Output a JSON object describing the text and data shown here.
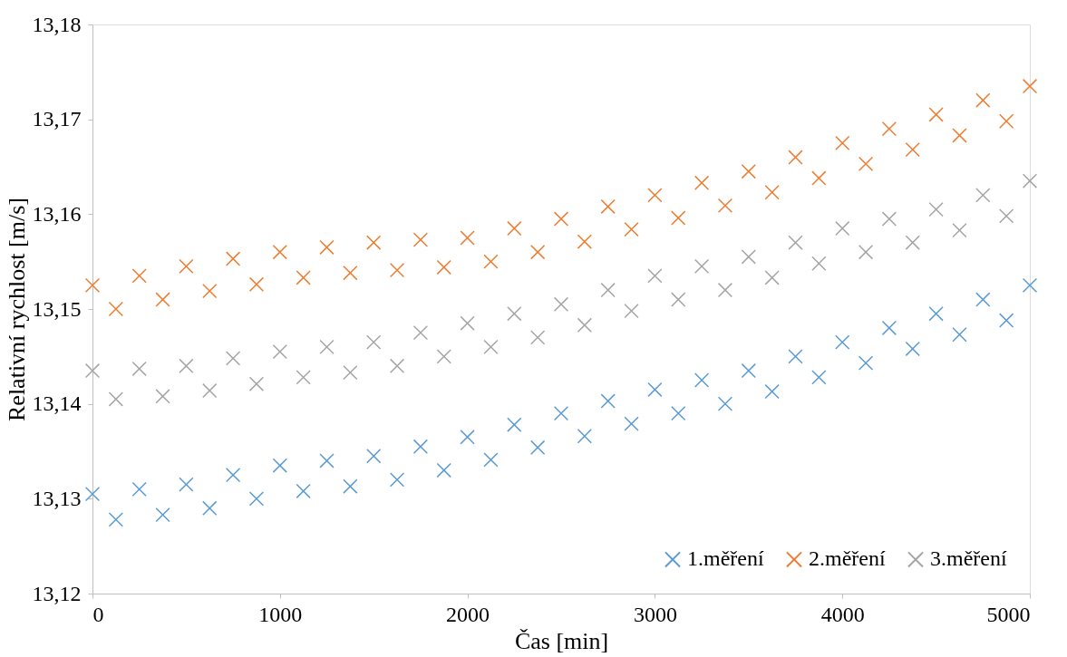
{
  "chart_data": {
    "type": "scatter",
    "xlabel": "Čas [min]",
    "ylabel": "Relativní rychlost [m/s]",
    "x": [
      0,
      125,
      250,
      375,
      500,
      625,
      750,
      875,
      1000,
      1125,
      1250,
      1375,
      1500,
      1625,
      1750,
      1875,
      2000,
      2125,
      2250,
      2375,
      2500,
      2625,
      2750,
      2875,
      3000,
      3125,
      3250,
      3375,
      3500,
      3625,
      3750,
      3875,
      4000,
      4125,
      4250,
      4375,
      4500,
      4625,
      4750,
      4875,
      5000
    ],
    "series": [
      {
        "name": "1.měření",
        "color": "#5b9bd5",
        "values": [
          13.1305,
          13.1278,
          13.131,
          13.1283,
          13.1315,
          13.129,
          13.1325,
          13.13,
          13.1335,
          13.1308,
          13.134,
          13.1313,
          13.1345,
          13.132,
          13.1355,
          13.133,
          13.1365,
          13.1341,
          13.1378,
          13.1354,
          13.139,
          13.1366,
          13.1403,
          13.1379,
          13.1415,
          13.139,
          13.1425,
          13.14,
          13.1435,
          13.1413,
          13.145,
          13.1428,
          13.1465,
          13.1443,
          13.148,
          13.1458,
          13.1495,
          13.1473,
          13.151,
          13.1488,
          13.1525
        ]
      },
      {
        "name": "2.měření",
        "color": "#ed7d31",
        "values": [
          13.1525,
          13.15,
          13.1535,
          13.151,
          13.1545,
          13.1519,
          13.1553,
          13.1526,
          13.156,
          13.1533,
          13.1565,
          13.1538,
          13.157,
          13.1541,
          13.1573,
          13.1544,
          13.1575,
          13.155,
          13.1585,
          13.156,
          13.1595,
          13.1571,
          13.1608,
          13.1584,
          13.162,
          13.1596,
          13.1633,
          13.1609,
          13.1645,
          13.1623,
          13.166,
          13.1638,
          13.1675,
          13.1653,
          13.169,
          13.1668,
          13.1705,
          13.1683,
          13.172,
          13.1698,
          13.1735
        ]
      },
      {
        "name": "3.měření",
        "color": "#a5a5a5",
        "values": [
          13.1435,
          13.1405,
          13.1437,
          13.1408,
          13.144,
          13.1414,
          13.1448,
          13.1421,
          13.1455,
          13.1428,
          13.146,
          13.1433,
          13.1465,
          13.144,
          13.1475,
          13.145,
          13.1485,
          13.146,
          13.1495,
          13.147,
          13.1505,
          13.1483,
          13.152,
          13.1498,
          13.1535,
          13.151,
          13.1545,
          13.152,
          13.1555,
          13.1533,
          13.157,
          13.1548,
          13.1585,
          13.156,
          13.1595,
          13.157,
          13.1605,
          13.1583,
          13.162,
          13.1598,
          13.1635
        ]
      }
    ],
    "xlim": [
      0,
      5000
    ],
    "xticks": [
      0,
      1000,
      2000,
      3000,
      4000,
      5000
    ],
    "ylim": [
      13.12,
      13.18
    ],
    "yticks": [
      {
        "value": 13.12,
        "label": "13,12"
      },
      {
        "value": 13.13,
        "label": "13,13"
      },
      {
        "value": 13.14,
        "label": "13,14"
      },
      {
        "value": 13.15,
        "label": "13,15"
      },
      {
        "value": 13.16,
        "label": "13,16"
      },
      {
        "value": 13.17,
        "label": "13,17"
      },
      {
        "value": 13.18,
        "label": "13,18"
      }
    ],
    "grid": false,
    "legend": "bottom right",
    "marker": "cross"
  }
}
